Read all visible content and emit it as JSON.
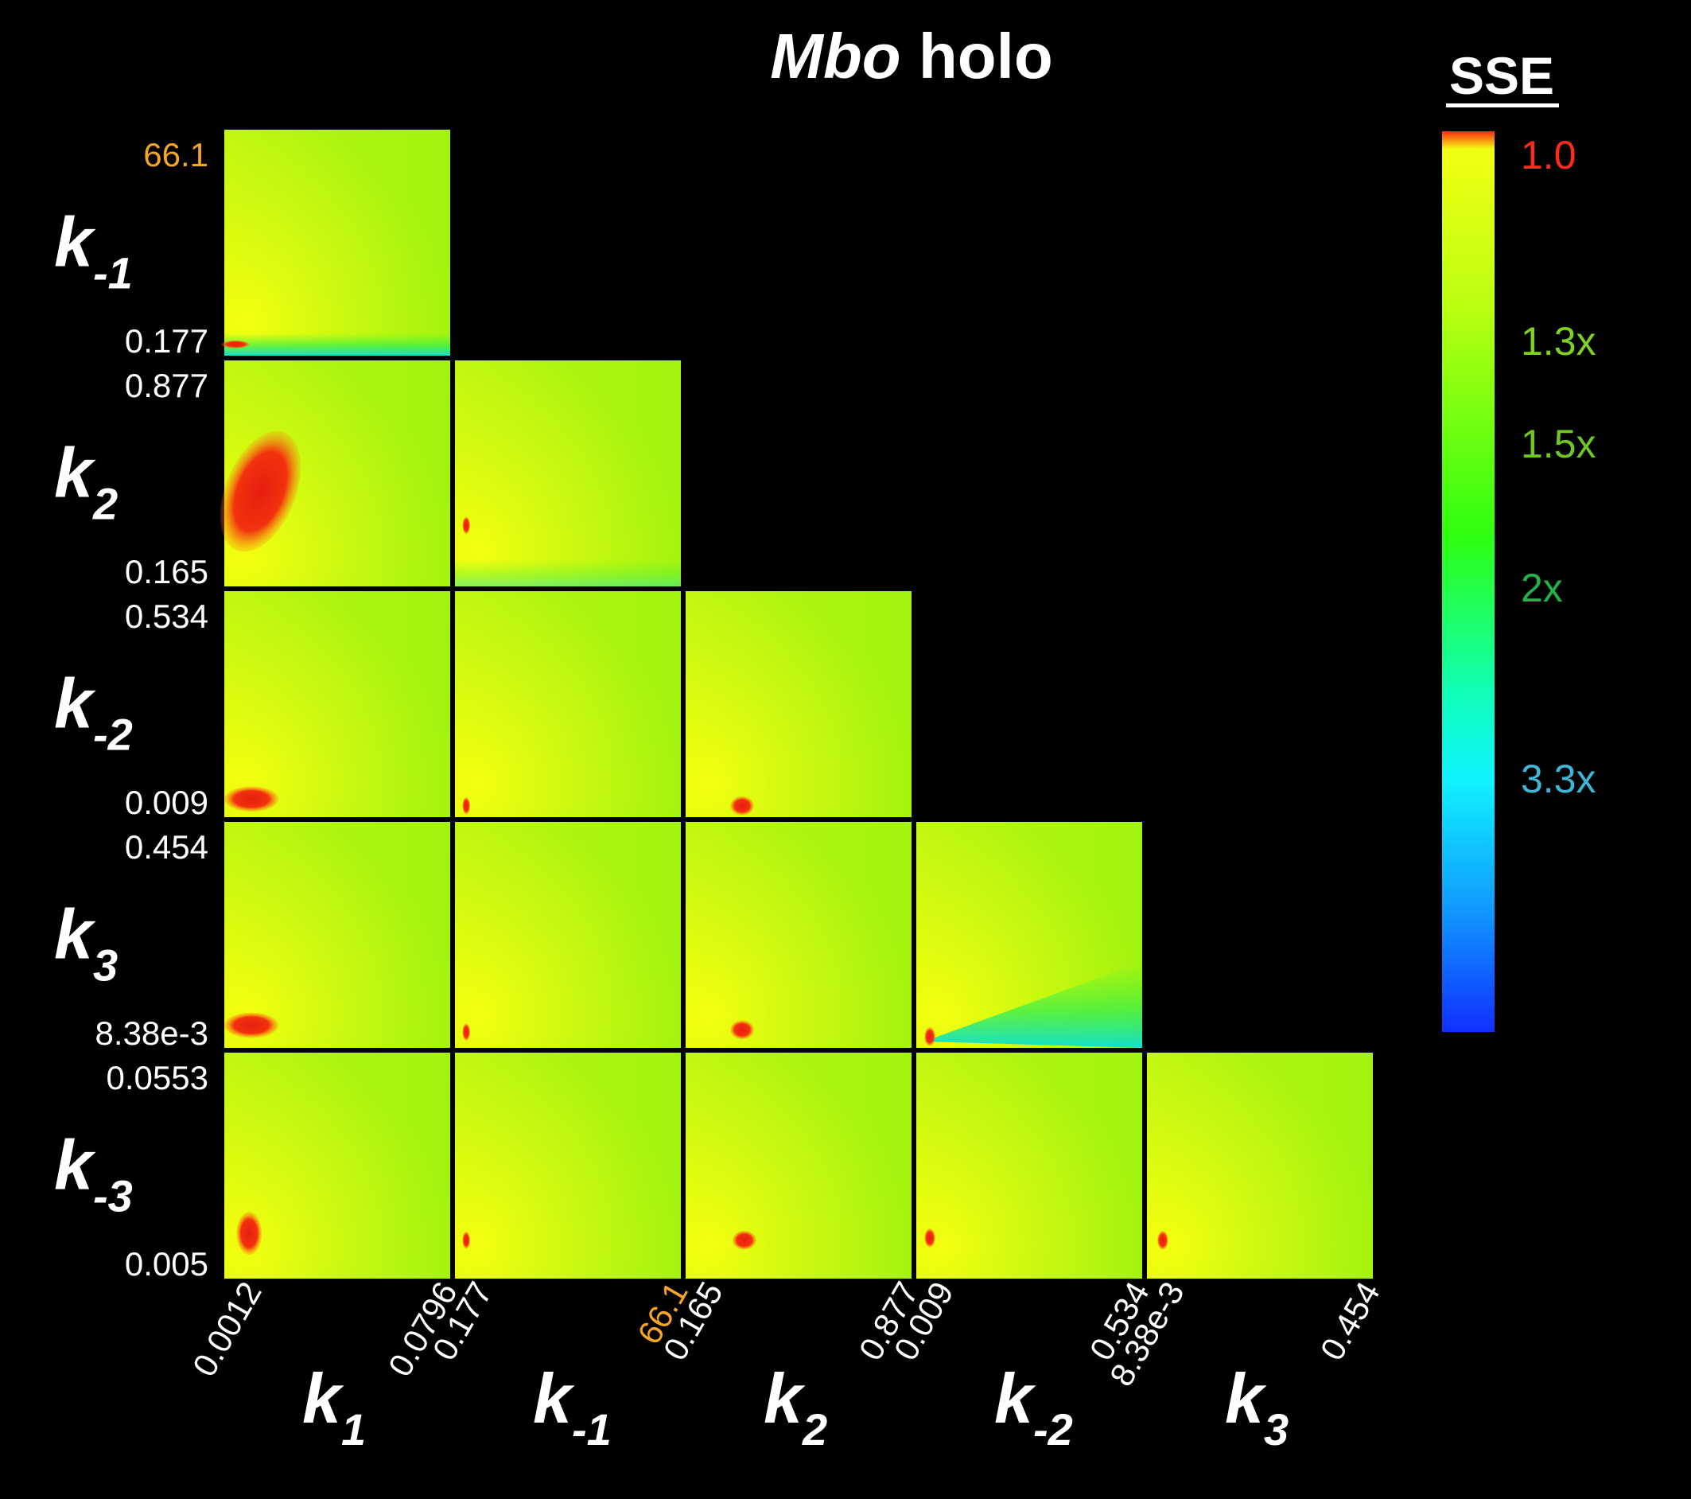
{
  "title_italic": "Mbo",
  "title_rest": " holo",
  "colorbar": {
    "title": "SSE",
    "ticks": [
      {
        "label": "1.0",
        "color": "#ff2a1a"
      },
      {
        "label": "1.3x",
        "color": "#7ed321"
      },
      {
        "label": "1.5x",
        "color": "#6fc724"
      },
      {
        "label": "2x",
        "color": "#22b24a"
      },
      {
        "label": "3.3x",
        "color": "#3fb6d8"
      }
    ],
    "colors": [
      "#ff2a10",
      "#f2ff14",
      "#b8ff10",
      "#2eff10",
      "#10ffb4",
      "#10f2ff",
      "#109cff",
      "#1030ff"
    ]
  },
  "chart_data": {
    "type": "heatmap",
    "title": "Mbo holo",
    "colorbar_label": "SSE",
    "colorbar_ticks": [
      "1.0",
      "1.3x",
      "1.5x",
      "2x",
      "3.3x"
    ],
    "params": [
      {
        "key": "k1",
        "base": "k",
        "sub": "1",
        "min": "0.0012",
        "max": "0.0796"
      },
      {
        "key": "k-1",
        "base": "k",
        "sub": "-1",
        "min": "0.177",
        "max": "66.1",
        "max_highlight": true
      },
      {
        "key": "k2",
        "base": "k",
        "sub": "2",
        "min": "0.165",
        "max": "0.877"
      },
      {
        "key": "k-2",
        "base": "k",
        "sub": "-2",
        "min": "0.009",
        "max": "0.534"
      },
      {
        "key": "k3",
        "base": "k",
        "sub": "3",
        "min": "8.38e-3",
        "max": "0.454"
      },
      {
        "key": "k-3",
        "base": "k",
        "sub": "-3",
        "min": "0.005",
        "max": "0.0553"
      }
    ],
    "highlight_color": "#f5a623",
    "panels": [
      {
        "x": "k1",
        "y": "k-1",
        "minimum": [
          0.05,
          0.05
        ]
      },
      {
        "x": "k1",
        "y": "k2",
        "minimum": [
          0.16,
          0.42
        ]
      },
      {
        "x": "k-1",
        "y": "k2",
        "minimum": [
          0.05,
          0.27
        ]
      },
      {
        "x": "k1",
        "y": "k-2",
        "minimum": [
          0.12,
          0.08
        ]
      },
      {
        "x": "k-1",
        "y": "k-2",
        "minimum": [
          0.05,
          0.05
        ]
      },
      {
        "x": "k2",
        "y": "k-2",
        "minimum": [
          0.25,
          0.05
        ]
      },
      {
        "x": "k1",
        "y": "k3",
        "minimum": [
          0.12,
          0.1
        ]
      },
      {
        "x": "k-1",
        "y": "k3",
        "minimum": [
          0.05,
          0.07
        ]
      },
      {
        "x": "k2",
        "y": "k3",
        "minimum": [
          0.25,
          0.08
        ]
      },
      {
        "x": "k-2",
        "y": "k3",
        "minimum": [
          0.06,
          0.05
        ]
      },
      {
        "x": "k1",
        "y": "k-3",
        "minimum": [
          0.11,
          0.2
        ]
      },
      {
        "x": "k-1",
        "y": "k-3",
        "minimum": [
          0.05,
          0.17
        ]
      },
      {
        "x": "k2",
        "y": "k-3",
        "minimum": [
          0.26,
          0.17
        ]
      },
      {
        "x": "k-2",
        "y": "k-3",
        "minimum": [
          0.06,
          0.18
        ]
      },
      {
        "x": "k3",
        "y": "k-3",
        "minimum": [
          0.07,
          0.17
        ]
      }
    ]
  }
}
